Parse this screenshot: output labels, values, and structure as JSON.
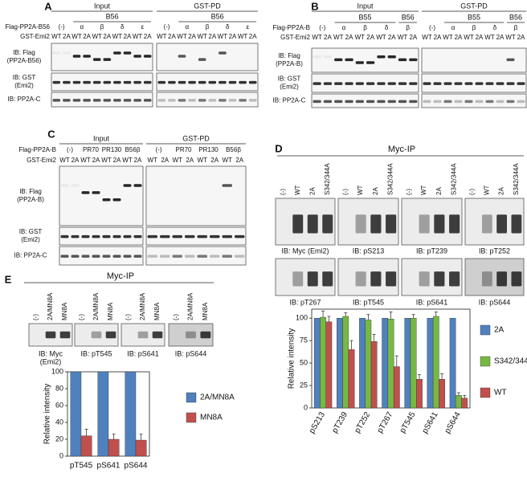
{
  "genotypes": [
    "WT",
    "2A"
  ],
  "panels": [
    {
      "label": "A",
      "row_labels": [
        "Flag-PP2A-B56",
        "GST-Emi2"
      ],
      "groups": [
        {
          "title": "Input",
          "subgroups": [
            "B56"
          ],
          "lanes": [
            "(-)",
            "α",
            "β",
            "δ",
            "ε"
          ]
        },
        {
          "title": "GST-PD",
          "subgroups": [
            "B56"
          ],
          "lanes": [
            "(-)",
            "α",
            "β",
            "δ",
            "ε"
          ]
        }
      ],
      "blots": [
        [
          "IB: Flag",
          "(PP2A-B56)"
        ],
        [
          "IB: GST",
          "(Emi2)"
        ],
        [
          "IB: PP2A-C"
        ]
      ]
    },
    {
      "label": "B",
      "row_labels": [
        "Flag-PP2A-B",
        "GST-Emi2"
      ],
      "groups": [
        {
          "title": "Input",
          "subgroups": [
            "B55",
            "B56"
          ],
          "lanes": [
            "(-)",
            "α",
            "β",
            "δ",
            "β"
          ]
        },
        {
          "title": "GST-PD",
          "subgroups": [
            "B55",
            "B56"
          ],
          "lanes": [
            "(-)",
            "α",
            "β",
            "δ",
            "β"
          ]
        }
      ],
      "blots": [
        [
          "IB: Flag",
          "(PP2A-B)"
        ],
        [
          "IB: GST",
          "(Emi2)"
        ],
        [
          "IB: PP2A-C"
        ]
      ]
    },
    {
      "label": "C",
      "row_labels": [
        "Flag-PP2A-B",
        "GST-Emi2"
      ],
      "groups": [
        {
          "title": "Input",
          "subgroups": [],
          "lanes": [
            "(-)",
            "PR70",
            "PR130",
            "B56β"
          ]
        },
        {
          "title": "GST-PD",
          "subgroups": [],
          "lanes": [
            "(-)",
            "PR70",
            "PR130",
            "B56β"
          ]
        }
      ],
      "blots": [
        [
          "IB: Flag",
          "(PP2A-B)"
        ],
        [
          "IB: GST",
          "(Emi2)"
        ],
        [
          "IB: PP2A-C"
        ]
      ]
    },
    {
      "label": "D",
      "title": "Myc-IP",
      "lanes": [
        "(-)",
        "WT",
        "2A",
        "S342/344A"
      ],
      "blots": [
        [
          "IB: Myc (Emi2)"
        ],
        [
          "IB: pS213"
        ],
        [
          "IB: pT239"
        ],
        [
          "IB: pT252"
        ],
        [
          "IB: pT267"
        ],
        [
          "IB: pT545"
        ],
        [
          "IB: pS641"
        ],
        [
          "IB: pS644"
        ]
      ],
      "chart": {
        "type": "bar",
        "ylabel": "Relative intensity",
        "categories": [
          "pS213",
          "pT239",
          "pT252",
          "pT267",
          "pT545",
          "pS641",
          "pS644"
        ],
        "ylim": [
          0,
          110
        ],
        "yticks": [
          0,
          25,
          50,
          75,
          100
        ],
        "series": [
          {
            "name": "2A",
            "color": "#4f81bd",
            "values": [
              100,
              100,
              100,
              100,
              100,
              100,
              100
            ]
          },
          {
            "name": "S342/344A",
            "color": "#77b843",
            "values": [
              101,
              102,
              98,
              99,
              100,
              102,
              14
            ],
            "errors": [
              7,
              4,
              6,
              8,
              4,
              5,
              3
            ]
          },
          {
            "name": "WT",
            "color": "#c0504d",
            "values": [
              96,
              65,
              74,
              46,
              32,
              32,
              11
            ],
            "errors": [
              6,
              10,
              8,
              12,
              5,
              6,
              3
            ]
          }
        ]
      }
    },
    {
      "label": "E",
      "title": "Myc-IP",
      "lanes": [
        "(-)",
        "2A/MN8A",
        "MN8A"
      ],
      "blots": [
        [
          "IB: Myc",
          "(Emi2)"
        ],
        [
          "IB: pT545"
        ],
        [
          "IB: pS641"
        ],
        [
          "IB: pS644"
        ]
      ],
      "chart": {
        "type": "bar",
        "ylabel": "Relative intensity",
        "categories": [
          "pT545",
          "pS641",
          "pS644"
        ],
        "ylim": [
          0,
          100
        ],
        "yticks": [
          0,
          20,
          40,
          60,
          80,
          100
        ],
        "series": [
          {
            "name": "2A/MN8A",
            "color": "#4f81bd",
            "values": [
              100,
              100,
              100
            ]
          },
          {
            "name": "MN8A",
            "color": "#c0504d",
            "values": [
              24,
              20,
              19
            ],
            "errors": [
              8,
              6,
              7
            ]
          }
        ]
      }
    }
  ]
}
